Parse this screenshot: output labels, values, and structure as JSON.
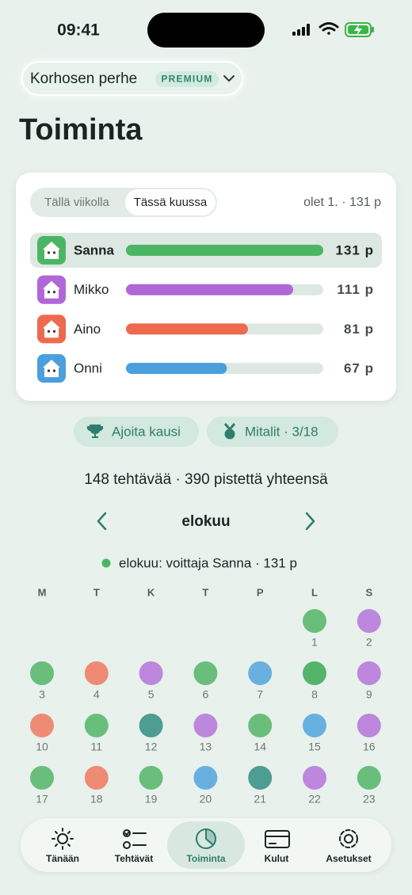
{
  "status_bar": {
    "time": "09:41"
  },
  "header": {
    "family": "Korhosen perhe",
    "badge": "PREMIUM",
    "title": "Toiminta"
  },
  "card": {
    "tabs": [
      "Tällä viikolla",
      "Tässä kuussa"
    ],
    "rank_summary": "olet 1. · 131 p",
    "rows": [
      {
        "name": "Sanna",
        "color": "#4cb564",
        "points": 131,
        "points_label": "131 p"
      },
      {
        "name": "Mikko",
        "color": "#b067d8",
        "points": 111,
        "points_label": "111 p"
      },
      {
        "name": "Aino",
        "color": "#ee6a4f",
        "points": 81,
        "points_label": "81 p"
      },
      {
        "name": "Onni",
        "color": "#4a9fdc",
        "points": 67,
        "points_label": "67 p"
      }
    ]
  },
  "buttons": [
    "Ajoita kausi",
    "Mitalit · 3/18"
  ],
  "totals": "148 tehtävää · 390 pistettä yhteensä",
  "calendar": {
    "month": "elokuu",
    "winner": "elokuu: voittaja Sanna · 131 p",
    "weekdays": [
      "M",
      "T",
      "K",
      "T",
      "P",
      "L",
      "S"
    ],
    "weeks": [
      [
        null,
        null,
        null,
        null,
        null,
        {
          "day": 1,
          "color": "#5cb870"
        },
        {
          "day": 2,
          "color": "#b87bdb"
        }
      ],
      [
        {
          "day": 3,
          "color": "#5cb870"
        },
        {
          "day": 4,
          "color": "#ef7f68"
        },
        {
          "day": 5,
          "color": "#b87bdb"
        },
        {
          "day": 6,
          "color": "#5cb870"
        },
        {
          "day": 7,
          "color": "#5aa8de"
        },
        {
          "day": 8,
          "color": "#45ad5e"
        },
        {
          "day": 9,
          "color": "#b87bdb"
        }
      ],
      [
        {
          "day": 10,
          "color": "#ef7f68"
        },
        {
          "day": 11,
          "color": "#5cb870"
        },
        {
          "day": 12,
          "color": "#3d9389"
        },
        {
          "day": 13,
          "color": "#b87bdb"
        },
        {
          "day": 14,
          "color": "#5cb870"
        },
        {
          "day": 15,
          "color": "#5aa8de"
        },
        {
          "day": 16,
          "color": "#b87bdb"
        }
      ],
      [
        {
          "day": 17,
          "color": "#5cb870"
        },
        {
          "day": 18,
          "color": "#ef7f68"
        },
        {
          "day": 19,
          "color": "#5cb870"
        },
        {
          "day": 20,
          "color": "#5aa8de"
        },
        {
          "day": 21,
          "color": "#3d9389"
        },
        {
          "day": 22,
          "color": "#b87bdb"
        },
        {
          "day": 23,
          "color": "#5cb870"
        }
      ]
    ]
  },
  "tab_bar": [
    "Tänään",
    "Tehtävät",
    "Toiminta",
    "Kulut",
    "Asetukset"
  ]
}
